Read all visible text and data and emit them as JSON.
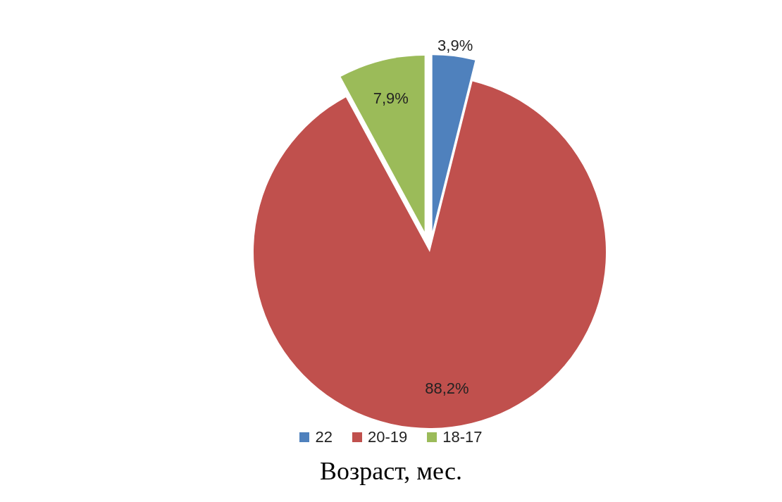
{
  "chart_data": {
    "type": "pie",
    "title": "Возраст, мес.",
    "categories": [
      "22",
      "20-19",
      "18-17"
    ],
    "values": [
      3.9,
      88.2,
      7.9
    ],
    "colors": [
      "#4f81bd",
      "#c0504d",
      "#9bbb59"
    ],
    "value_labels": [
      "3,9%",
      "88,2%",
      "7,9%"
    ],
    "legend": "bottom"
  }
}
